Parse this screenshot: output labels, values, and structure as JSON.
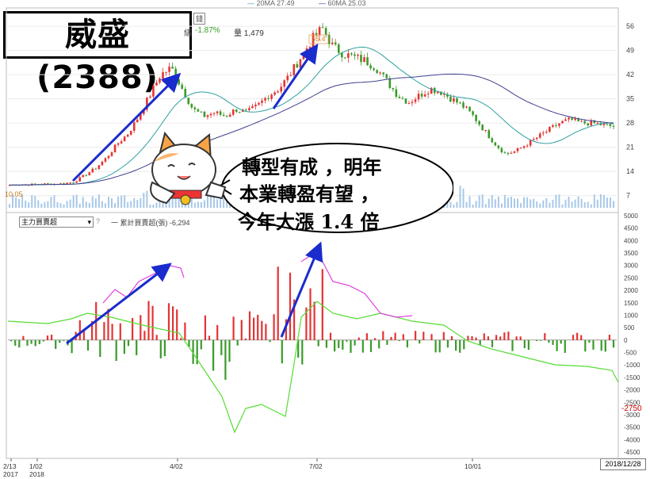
{
  "title": "威盛(2388)",
  "header": {
    "ma20": "20MA 27.49",
    "ma60": "60MA 25.03",
    "change_pct": "-1.87%",
    "volume": "量 1,479",
    "tag_fragment": "錢",
    "tag_fragment2": "繕",
    "price_high_label": "55.4",
    "price_low_label": "10.05"
  },
  "sub_panel": {
    "selector": "主力買賣超",
    "help": "?",
    "cumulative": "一 累計買賣超(張) -6,294",
    "last_value": "-2750",
    "zero_label": "0"
  },
  "bubble_text": {
    "line1": "轉型有成 ，明年",
    "line2": "本業轉盈有望 ，",
    "line3": "今年大漲 1.4 倍"
  },
  "date_chip": "2018/12/28",
  "colors": {
    "up": "#e53333",
    "down": "#3a9a2a",
    "ma20": "#30a0a0",
    "ma60": "#404090",
    "buysell_line": "#e040e0",
    "cum_line": "#55dd33",
    "arrow": "#1a2ccc"
  },
  "chart_data": [
    {
      "type": "candlestick",
      "title": "",
      "yticks": [
        7,
        14,
        21,
        28,
        35,
        42,
        49,
        56
      ],
      "xticks": [
        "2/13 2017",
        "1/02 2018",
        "4/02",
        "7/02",
        "10/01"
      ],
      "annotations": [
        "55.4",
        "10.05"
      ],
      "close_trend": [
        10.05,
        10.3,
        10.2,
        10.4,
        10.4,
        10.5,
        11,
        13,
        15,
        18,
        22,
        25,
        30,
        36,
        42,
        44,
        38,
        32,
        30,
        31,
        30,
        32,
        31,
        33,
        36,
        38,
        42,
        47,
        52,
        55.4,
        50,
        48,
        47,
        46,
        44,
        40,
        36,
        34,
        36,
        38,
        37,
        35,
        33,
        30,
        26,
        22,
        19,
        20,
        22,
        24,
        26,
        28,
        29,
        28,
        28,
        27.5,
        27
      ]
    },
    {
      "type": "bar",
      "title": "",
      "y_range": [
        -4500,
        5000
      ],
      "yticks": [
        5000,
        4500,
        4000,
        3500,
        3000,
        2500,
        2000,
        1500,
        1000,
        500,
        0,
        -500,
        -1000,
        -1500,
        -2000,
        -2500,
        -3000,
        -3500,
        -4000,
        -4500
      ],
      "series": [
        {
          "name": "累計買賣超(張)",
          "last": -6294
        }
      ]
    }
  ]
}
